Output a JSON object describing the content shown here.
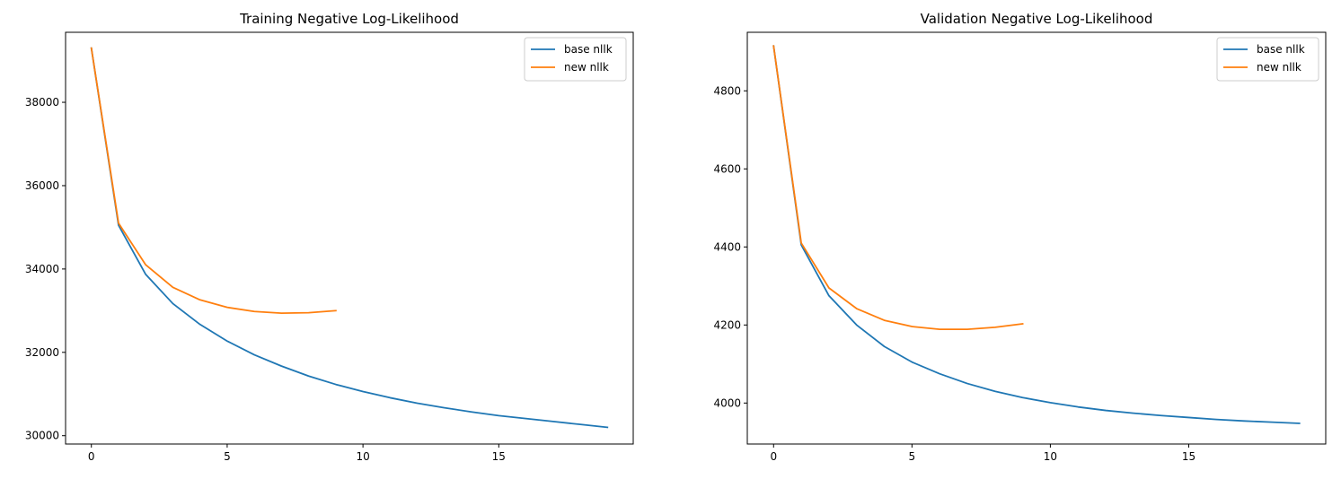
{
  "chart_data": [
    {
      "type": "line",
      "title": "Training Negative Log-Likelihood",
      "xlabel": "",
      "ylabel": "",
      "xlim": [
        -0.95,
        19.95
      ],
      "ylim": [
        29800,
        39680
      ],
      "xticks": [
        0,
        5,
        10,
        15
      ],
      "xtick_labels": [
        "0",
        "5",
        "10",
        "15"
      ],
      "yticks": [
        30000,
        32000,
        34000,
        36000,
        38000
      ],
      "ytick_labels": [
        "30000",
        "32000",
        "34000",
        "36000",
        "38000"
      ],
      "grid": false,
      "legend_position": "top-right",
      "series": [
        {
          "name": "base nllk",
          "color": "#1f77b4",
          "x": [
            0,
            1,
            2,
            3,
            4,
            5,
            6,
            7,
            8,
            9,
            10,
            11,
            12,
            13,
            14,
            15,
            16,
            17,
            18,
            19
          ],
          "values": [
            39300,
            35050,
            33870,
            33170,
            32670,
            32270,
            31940,
            31670,
            31430,
            31230,
            31060,
            30910,
            30780,
            30670,
            30570,
            30480,
            30410,
            30340,
            30270,
            30200
          ]
        },
        {
          "name": "new nllk",
          "color": "#ff7f0e",
          "x": [
            0,
            1,
            2,
            3,
            4,
            5,
            6,
            7,
            8,
            9
          ],
          "values": [
            39300,
            35100,
            34100,
            33560,
            33260,
            33080,
            32980,
            32940,
            32950,
            33000
          ]
        }
      ]
    },
    {
      "type": "line",
      "title": "Validation Negative Log-Likelihood",
      "xlabel": "",
      "ylabel": "",
      "xlim": [
        -0.95,
        19.95
      ],
      "ylim": [
        3895,
        4950
      ],
      "xticks": [
        0,
        5,
        10,
        15
      ],
      "xtick_labels": [
        "0",
        "5",
        "10",
        "15"
      ],
      "yticks": [
        4000,
        4200,
        4400,
        4600,
        4800
      ],
      "ytick_labels": [
        "4000",
        "4200",
        "4400",
        "4600",
        "4800"
      ],
      "grid": false,
      "legend_position": "top-right",
      "series": [
        {
          "name": "base nllk",
          "color": "#1f77b4",
          "x": [
            0,
            1,
            2,
            3,
            4,
            5,
            6,
            7,
            8,
            9,
            10,
            11,
            12,
            13,
            14,
            15,
            16,
            17,
            18,
            19
          ],
          "values": [
            4915,
            4405,
            4275,
            4200,
            4145,
            4105,
            4075,
            4050,
            4030,
            4014,
            4001,
            3990,
            3981,
            3974,
            3968,
            3963,
            3958,
            3954,
            3951,
            3948
          ]
        },
        {
          "name": "new nllk",
          "color": "#ff7f0e",
          "x": [
            0,
            1,
            2,
            3,
            4,
            5,
            6,
            7,
            8,
            9
          ],
          "values": [
            4915,
            4410,
            4295,
            4242,
            4212,
            4196,
            4189,
            4189,
            4194,
            4203
          ]
        }
      ]
    }
  ]
}
